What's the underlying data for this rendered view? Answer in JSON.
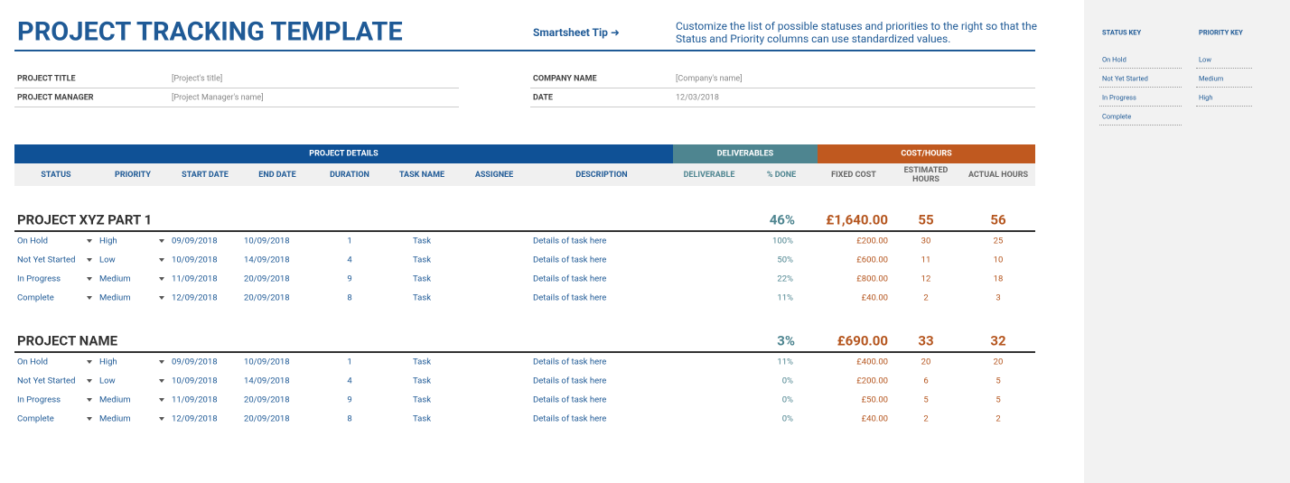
{
  "header": {
    "title": "PROJECT TRACKING TEMPLATE",
    "tip_label": "Smartsheet Tip ➜",
    "tip_text": "Customize the list of possible statuses and priorities to the right so that the Status and Priority columns can use standardized values."
  },
  "info": [
    {
      "label": "PROJECT TITLE",
      "value": "[Project's title]"
    },
    {
      "label": "PROJECT MANAGER",
      "value": "[Project Manager's name]"
    },
    {
      "label": "COMPANY NAME",
      "value": "[Company's name]"
    },
    {
      "label": "DATE",
      "value": "12/03/2018"
    }
  ],
  "table": {
    "groups": [
      "PROJECT DETAILS",
      "DELIVERABLES",
      "COST/HOURS"
    ],
    "columns": [
      "STATUS",
      "PRIORITY",
      "START DATE",
      "END DATE",
      "DURATION",
      "TASK NAME",
      "ASSIGNEE",
      "DESCRIPTION",
      "DELIVERABLE",
      "% DONE",
      "FIXED COST",
      "ESTIMATED HOURS",
      "ACTUAL HOURS"
    ],
    "projects": [
      {
        "name": "PROJECT XYZ PART 1",
        "summary": {
          "percent_done": "46%",
          "fixed_cost": "£1,640.00",
          "estimated_hours": "55",
          "actual_hours": "56"
        },
        "rows": [
          {
            "status": "On Hold",
            "priority": "High",
            "start_date": "09/09/2018",
            "end_date": "10/09/2018",
            "duration": "1",
            "task_name": "Task",
            "description": "Details of task here",
            "percent_done": "100%",
            "fixed_cost": "£200.00",
            "estimated_hours": "30",
            "actual_hours": "25"
          },
          {
            "status": "Not Yet Started",
            "priority": "Low",
            "start_date": "10/09/2018",
            "end_date": "14/09/2018",
            "duration": "4",
            "task_name": "Task",
            "description": "Details of task here",
            "percent_done": "50%",
            "fixed_cost": "£600.00",
            "estimated_hours": "11",
            "actual_hours": "10"
          },
          {
            "status": "In Progress",
            "priority": "Medium",
            "start_date": "11/09/2018",
            "end_date": "20/09/2018",
            "duration": "9",
            "task_name": "Task",
            "description": "Details of task here",
            "percent_done": "22%",
            "fixed_cost": "£800.00",
            "estimated_hours": "12",
            "actual_hours": "18"
          },
          {
            "status": "Complete",
            "priority": "Medium",
            "start_date": "12/09/2018",
            "end_date": "20/09/2018",
            "duration": "8",
            "task_name": "Task",
            "description": "Details of task here",
            "percent_done": "11%",
            "fixed_cost": "£40.00",
            "estimated_hours": "2",
            "actual_hours": "3"
          }
        ]
      },
      {
        "name": "PROJECT NAME",
        "summary": {
          "percent_done": "3%",
          "fixed_cost": "£690.00",
          "estimated_hours": "33",
          "actual_hours": "32"
        },
        "rows": [
          {
            "status": "On Hold",
            "priority": "High",
            "start_date": "09/09/2018",
            "end_date": "10/09/2018",
            "duration": "1",
            "task_name": "Task",
            "description": "Details of task here",
            "percent_done": "11%",
            "fixed_cost": "£400.00",
            "estimated_hours": "20",
            "actual_hours": "20"
          },
          {
            "status": "Not Yet Started",
            "priority": "Low",
            "start_date": "10/09/2018",
            "end_date": "14/09/2018",
            "duration": "4",
            "task_name": "Task",
            "description": "Details of task here",
            "percent_done": "0%",
            "fixed_cost": "£200.00",
            "estimated_hours": "6",
            "actual_hours": "5"
          },
          {
            "status": "In Progress",
            "priority": "Medium",
            "start_date": "11/09/2018",
            "end_date": "20/09/2018",
            "duration": "9",
            "task_name": "Task",
            "description": "Details of task here",
            "percent_done": "0%",
            "fixed_cost": "£50.00",
            "estimated_hours": "5",
            "actual_hours": "5"
          },
          {
            "status": "Complete",
            "priority": "Medium",
            "start_date": "12/09/2018",
            "end_date": "20/09/2018",
            "duration": "8",
            "task_name": "Task",
            "description": "Details of task here",
            "percent_done": "0%",
            "fixed_cost": "£40.00",
            "estimated_hours": "2",
            "actual_hours": "2"
          }
        ]
      }
    ]
  },
  "keys": {
    "status_key": {
      "title": "STATUS KEY",
      "items": [
        "On Hold",
        "Not Yet Started",
        "In Progress",
        "Complete"
      ]
    },
    "priority_key": {
      "title": "PRIORITY KEY",
      "items": [
        "Low",
        "Medium",
        "High"
      ]
    }
  }
}
